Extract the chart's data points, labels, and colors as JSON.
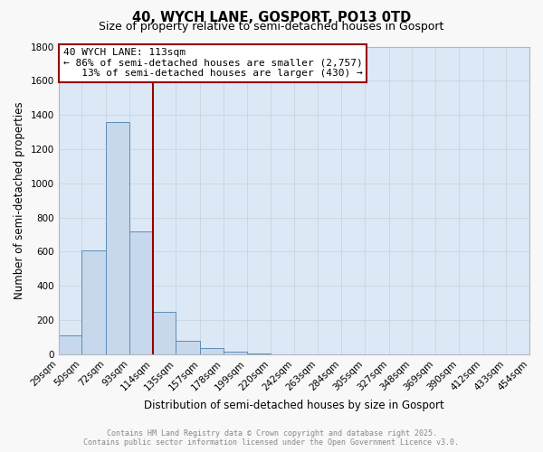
{
  "title": "40, WYCH LANE, GOSPORT, PO13 0TD",
  "subtitle": "Size of property relative to semi-detached houses in Gosport",
  "xlabel": "Distribution of semi-detached houses by size in Gosport",
  "ylabel": "Number of semi-detached properties",
  "bins": [
    29,
    50,
    72,
    93,
    114,
    135,
    157,
    178,
    199,
    220,
    242,
    263,
    284,
    305,
    327,
    348,
    369,
    390,
    412,
    433,
    454
  ],
  "counts": [
    110,
    610,
    1360,
    720,
    250,
    80,
    35,
    15,
    5,
    2,
    1,
    1,
    0,
    0,
    0,
    0,
    0,
    0,
    0,
    0
  ],
  "bar_color": "#c8d8ec",
  "bar_edge_color": "#5b8db8",
  "vline_x": 114,
  "vline_color": "#990000",
  "annotation_line1": "40 WYCH LANE: 113sqm",
  "annotation_line2": "← 86% of semi-detached houses are smaller (2,757)",
  "annotation_line3": "   13% of semi-detached houses are larger (430) →",
  "annotation_box_color": "#ffffff",
  "annotation_box_edge": "#990000",
  "ylim": [
    0,
    1800
  ],
  "yticks": [
    0,
    200,
    400,
    600,
    800,
    1000,
    1200,
    1400,
    1600,
    1800
  ],
  "bg_color": "#dce8f5",
  "grid_color": "#c8d4e0",
  "fig_bg_color": "#f8f8f8",
  "footer_line1": "Contains HM Land Registry data © Crown copyright and database right 2025.",
  "footer_line2": "Contains public sector information licensed under the Open Government Licence v3.0.",
  "title_fontsize": 10.5,
  "subtitle_fontsize": 9,
  "tick_label_fontsize": 7.5,
  "axis_label_fontsize": 8.5,
  "annotation_fontsize": 8
}
